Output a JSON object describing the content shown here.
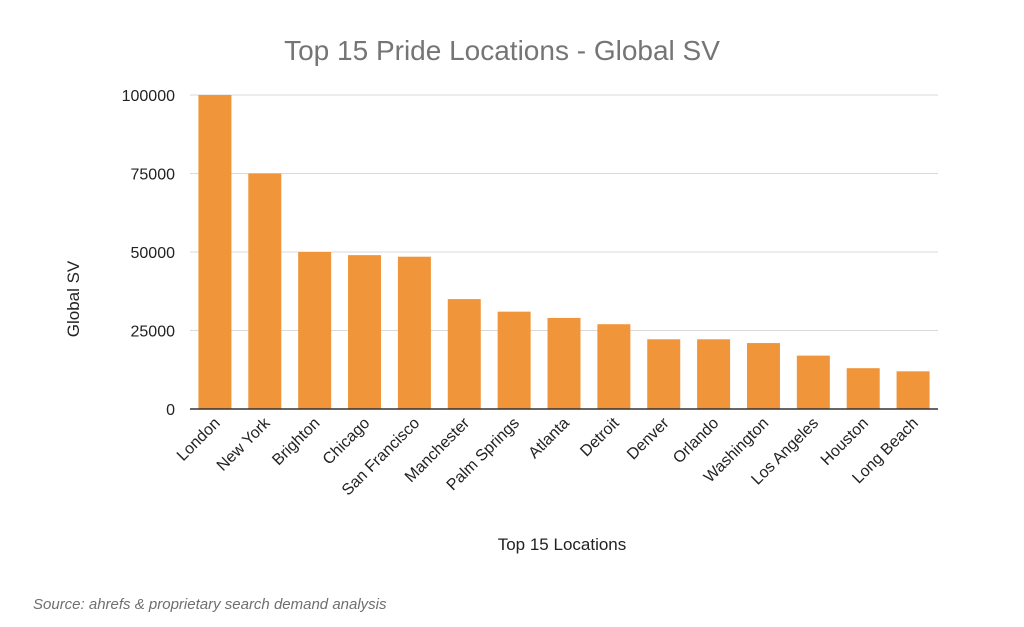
{
  "chart_data": {
    "type": "bar",
    "title": "Top 15 Pride Locations - Global SV",
    "xlabel": "Top 15 Locations",
    "ylabel": "Global SV",
    "categories": [
      "London",
      "New York",
      "Brighton",
      "Chicago",
      "San Francisco",
      "Manchester",
      "Palm Springs",
      "Atlanta",
      "Detroit",
      "Denver",
      "Orlando",
      "Washington",
      "Los Angeles",
      "Houston",
      "Long Beach"
    ],
    "values": [
      100000,
      75000,
      50000,
      49000,
      48500,
      35000,
      31000,
      29000,
      27000,
      22200,
      22200,
      21000,
      17000,
      13000,
      12000
    ],
    "yticks": [
      "0",
      "25000",
      "50000",
      "75000",
      "100000"
    ],
    "ylim": [
      0,
      100000
    ],
    "grid": true,
    "legend": "none",
    "bar_color": "#F0953A"
  },
  "footer": {
    "source": "Source: ahrefs  & proprietary search demand analysis"
  }
}
